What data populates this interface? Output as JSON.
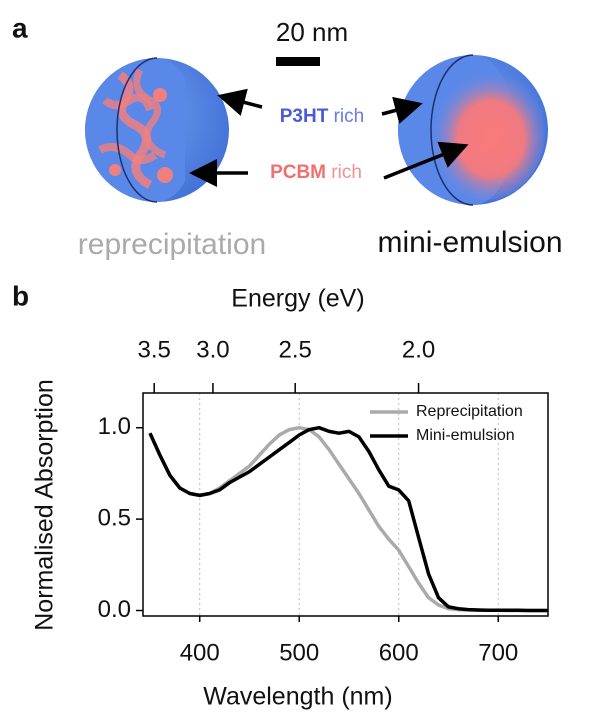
{
  "panel_a": {
    "label": "a",
    "scale_bar": "20 nm",
    "p3ht": {
      "name": "P3HT",
      "suffix": "rich"
    },
    "pcbm": {
      "name": "PCBM",
      "suffix": "rich"
    },
    "left_caption": "reprecipitation",
    "right_caption": "mini-emulsion"
  },
  "chart_data": {
    "type": "line",
    "panel_label": "b",
    "xlabel": "Wavelength (nm)",
    "ylabel": "Normalised Absorption",
    "x2label": "Energy (eV)",
    "x": [
      350,
      360,
      370,
      380,
      390,
      400,
      410,
      420,
      430,
      440,
      450,
      460,
      470,
      480,
      490,
      500,
      510,
      520,
      530,
      540,
      550,
      560,
      570,
      580,
      590,
      600,
      610,
      620,
      630,
      640,
      650,
      660,
      670,
      680,
      690,
      700,
      710,
      720,
      730,
      740,
      750
    ],
    "series": [
      {
        "name": "Reprecipitation",
        "color": "#aaaaaa",
        "values": [
          0.97,
          0.85,
          0.74,
          0.67,
          0.64,
          0.63,
          0.64,
          0.67,
          0.71,
          0.75,
          0.79,
          0.85,
          0.91,
          0.96,
          0.99,
          1.0,
          0.99,
          0.95,
          0.88,
          0.8,
          0.72,
          0.64,
          0.55,
          0.46,
          0.39,
          0.33,
          0.24,
          0.15,
          0.07,
          0.03,
          0.01,
          0.005,
          0.003,
          0.002,
          0.001,
          0.001,
          0.0,
          0.0,
          0.0,
          0.0,
          0.0
        ]
      },
      {
        "name": "Mini-emulsion",
        "color": "#000000",
        "values": [
          0.97,
          0.85,
          0.74,
          0.67,
          0.64,
          0.63,
          0.64,
          0.66,
          0.7,
          0.73,
          0.76,
          0.8,
          0.84,
          0.88,
          0.92,
          0.96,
          0.99,
          1.0,
          0.98,
          0.97,
          0.98,
          0.95,
          0.87,
          0.77,
          0.68,
          0.66,
          0.6,
          0.4,
          0.2,
          0.07,
          0.02,
          0.01,
          0.005,
          0.003,
          0.002,
          0.002,
          0.001,
          0.001,
          0.0,
          0.0,
          0.0
        ]
      }
    ],
    "xlim": [
      343,
      750
    ],
    "xticks": [
      400,
      500,
      600,
      700
    ],
    "ylim": [
      -0.03,
      1.19
    ],
    "yticks": [
      {
        "value": 0,
        "label": "0.0"
      },
      0.5,
      {
        "value": 1,
        "label": "1.0"
      }
    ],
    "x2ticks": [
      3.5,
      {
        "value": 3,
        "label": "3.0"
      },
      2.5,
      {
        "value": 2,
        "label": "2.0"
      }
    ],
    "grid": true,
    "legend": "upper right"
  }
}
